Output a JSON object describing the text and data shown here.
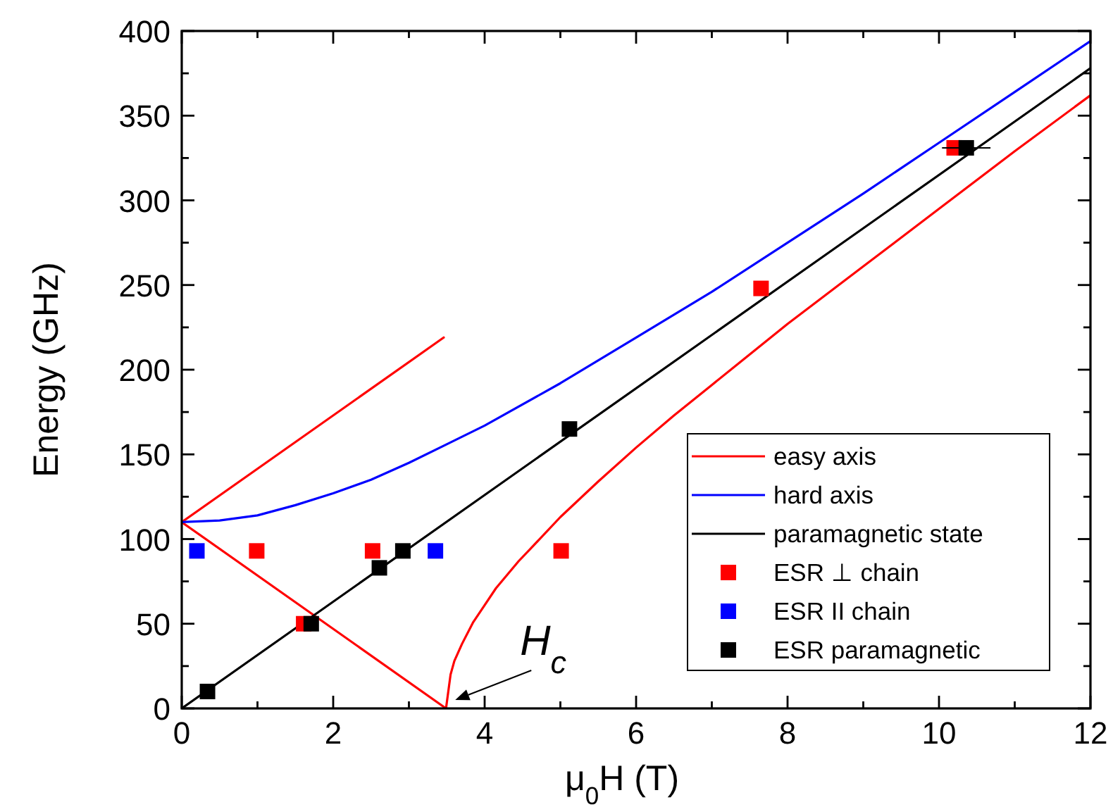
{
  "chart_data": {
    "type": "line",
    "xlabel": "μ$_{0}$H (T)",
    "ylabel": "Energy (GHz)",
    "xlim": [
      0,
      12
    ],
    "ylim": [
      0,
      400
    ],
    "xticks": [
      0,
      {
        "value": 1,
        "label": null
      },
      2,
      {
        "value": 3,
        "label": null
      },
      4,
      {
        "value": 5,
        "label": null
      },
      6,
      {
        "value": 7,
        "label": null
      },
      8,
      {
        "value": 9,
        "label": null
      },
      10,
      {
        "value": 11,
        "label": null
      },
      12
    ],
    "yticks": [
      0,
      {
        "value": 25,
        "label": null
      },
      50,
      {
        "value": 75,
        "label": null
      },
      100,
      {
        "value": 125,
        "label": null
      },
      150,
      {
        "value": 175,
        "label": null
      },
      200,
      {
        "value": 225,
        "label": null
      },
      250,
      {
        "value": 275,
        "label": null
      },
      300,
      {
        "value": 325,
        "label": null
      },
      350,
      {
        "value": 375,
        "label": null
      },
      400
    ],
    "grid": false,
    "legend": "bottom right",
    "line_style": "solid",
    "annotations": [
      {
        "text": "H$_{c}$",
        "x": 3.5,
        "y": 0
      }
    ],
    "series": [
      {
        "name": "easy axis",
        "color": "#ff0000",
        "x": [
          0,
          3.46
        ],
        "values": [
          110,
          219
        ]
      },
      {
        "color": "#ff0000",
        "x": [
          0,
          3.49,
          3.55,
          3.6,
          3.7,
          3.85,
          4.0,
          4.15,
          4.3,
          4.45,
          4.6,
          5.0,
          5.5,
          6,
          6.5,
          7,
          8,
          9,
          10,
          11,
          12
        ],
        "values": [
          110,
          0,
          20,
          28,
          38,
          51,
          61,
          71,
          79,
          87,
          94,
          113,
          134,
          154,
          173,
          191,
          227,
          261,
          295,
          329,
          362
        ]
      },
      {
        "name": "hard axis",
        "color": "#0000ff",
        "x": [
          0,
          0.5,
          1,
          1.5,
          2,
          2.5,
          3,
          3.5,
          4,
          5,
          6,
          7,
          8,
          9,
          10,
          11,
          12
        ],
        "values": [
          110,
          111,
          114,
          120,
          127,
          135,
          145,
          156,
          167,
          192,
          219,
          246,
          275,
          304,
          334,
          364,
          394
        ]
      },
      {
        "name": "paramagnetic state",
        "color": "#000000",
        "x": [
          0,
          12
        ],
        "values": [
          0,
          378
        ]
      },
      {
        "name": "ESR ⊥ chain",
        "type": "scatter",
        "marker": "square",
        "color": "#ff0000",
        "x": [
          0.99,
          1.61,
          2.52,
          5.01,
          7.65,
          10.2
        ],
        "values": [
          93,
          50,
          93,
          93,
          248,
          331
        ]
      },
      {
        "name": "ESR II chain",
        "type": "scatter",
        "marker": "square",
        "color": "#0000ff",
        "x": [
          0.2,
          3.35
        ],
        "values": [
          93,
          93
        ]
      },
      {
        "name": "ESR paramagnetic",
        "type": "scatter",
        "marker": "square",
        "color": "#000000",
        "x": [
          0.34,
          1.71,
          2.61,
          2.92,
          5.12,
          10.36
        ],
        "values": [
          10,
          50,
          83,
          93,
          165,
          331
        ],
        "xerrors": [
          null,
          null,
          null,
          null,
          null,
          0.32
        ]
      }
    ]
  }
}
